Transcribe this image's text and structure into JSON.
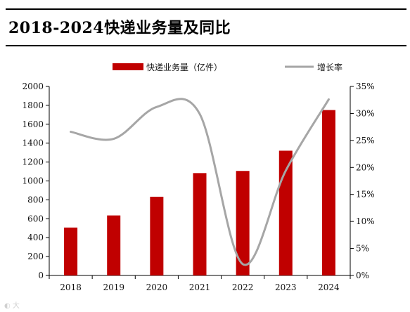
{
  "header": {
    "title": "2018-2024快递业务量及同比"
  },
  "colors": {
    "bar": "#c00000",
    "line": "#a6a6a6",
    "rule": "#000000"
  },
  "chart_data": {
    "type": "bar",
    "title": "2018-2024快递业务量及同比",
    "categories": [
      "2018",
      "2019",
      "2020",
      "2021",
      "2022",
      "2023",
      "2024"
    ],
    "series": [
      {
        "name": "快递业务量（亿件）",
        "type": "bar",
        "axis": "left",
        "values": [
          507,
          635,
          833,
          1083,
          1106,
          1320,
          1750
        ]
      },
      {
        "name": "增长率",
        "type": "line",
        "axis": "right",
        "smooth": true,
        "values": [
          26.6,
          25.3,
          31.2,
          29.9,
          2.1,
          19.4,
          32.6
        ]
      }
    ],
    "y_left": {
      "min": 0,
      "max": 2000,
      "ticks": [
        "0",
        "200",
        "400",
        "600",
        "800",
        "1000",
        "1200",
        "1400",
        "1600",
        "1800",
        "2000"
      ]
    },
    "y_right": {
      "min": 0,
      "max": 35,
      "ticks": [
        "0%",
        "5%",
        "10%",
        "15%",
        "20%",
        "25%",
        "30%",
        "35%"
      ]
    },
    "legend": {
      "position": "top-center"
    },
    "grid": false
  }
}
